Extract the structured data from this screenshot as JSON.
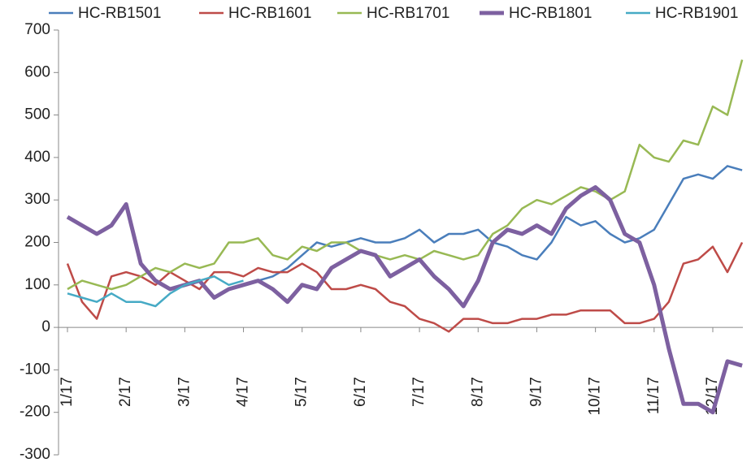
{
  "chart_data": {
    "type": "line",
    "categories": [
      "1/17",
      null,
      null,
      null,
      "2/17",
      null,
      null,
      null,
      "3/17",
      null,
      null,
      null,
      "4/17",
      null,
      null,
      null,
      "5/17",
      null,
      null,
      null,
      "6/17",
      null,
      null,
      null,
      "7/17",
      null,
      null,
      null,
      "8/17",
      null,
      null,
      null,
      "9/17",
      null,
      null,
      null,
      "10/17",
      null,
      null,
      null,
      "11/17",
      null,
      null,
      null,
      "12/17",
      null,
      null
    ],
    "series": [
      {
        "name": "HC-RB1501",
        "color": "#4a7ebb",
        "values": [
          null,
          null,
          null,
          null,
          null,
          null,
          null,
          null,
          null,
          null,
          null,
          null,
          100,
          110,
          120,
          140,
          170,
          200,
          190,
          200,
          210,
          200,
          200,
          210,
          230,
          200,
          220,
          220,
          230,
          200,
          190,
          170,
          160,
          200,
          260,
          240,
          250,
          220,
          200,
          210,
          230,
          290,
          350,
          360,
          350,
          380,
          370
        ]
      },
      {
        "name": "HC-RB1601",
        "color": "#be4b48",
        "values": [
          150,
          60,
          20,
          120,
          130,
          120,
          100,
          130,
          110,
          90,
          130,
          130,
          120,
          140,
          130,
          130,
          150,
          130,
          90,
          90,
          100,
          90,
          60,
          50,
          20,
          10,
          -10,
          20,
          20,
          10,
          10,
          20,
          20,
          30,
          30,
          40,
          40,
          40,
          10,
          10,
          20,
          60,
          150,
          160,
          190,
          130,
          200
        ]
      },
      {
        "name": "HC-RB1701",
        "color": "#98b954",
        "values": [
          90,
          110,
          100,
          90,
          100,
          120,
          140,
          130,
          150,
          140,
          150,
          200,
          200,
          210,
          170,
          160,
          190,
          180,
          200,
          200,
          180,
          170,
          160,
          170,
          160,
          180,
          170,
          160,
          170,
          220,
          240,
          280,
          300,
          290,
          310,
          330,
          320,
          300,
          320,
          430,
          400,
          390,
          440,
          430,
          520,
          500,
          630
        ]
      },
      {
        "name": "HC-RB1801",
        "color": "#7d60a0",
        "values": [
          260,
          240,
          220,
          240,
          290,
          150,
          110,
          90,
          100,
          110,
          70,
          90,
          100,
          110,
          90,
          60,
          100,
          90,
          140,
          160,
          180,
          170,
          120,
          140,
          160,
          120,
          90,
          50,
          110,
          200,
          230,
          220,
          240,
          220,
          280,
          310,
          330,
          300,
          220,
          200,
          100,
          -50,
          -180,
          -180,
          -200,
          -80,
          -90
        ]
      },
      {
        "name": "HC-RB1901",
        "color": "#46aac5",
        "values": [
          80,
          70,
          60,
          80,
          60,
          60,
          50,
          80,
          100,
          110,
          120,
          100,
          110,
          null,
          null,
          null,
          null,
          null,
          null,
          null,
          null,
          null,
          null,
          null,
          null,
          null,
          null,
          null,
          null,
          null,
          null,
          null,
          null,
          null,
          null,
          null,
          null,
          null,
          null,
          null,
          null,
          null,
          null,
          null,
          null,
          null,
          null
        ]
      }
    ],
    "ylim": [
      -300,
      700
    ],
    "yticks": [
      -300,
      -200,
      -100,
      0,
      100,
      200,
      300,
      400,
      500,
      600,
      700
    ]
  }
}
